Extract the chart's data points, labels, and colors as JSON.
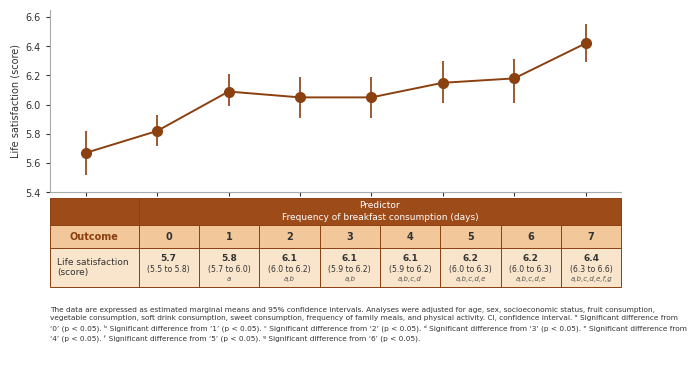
{
  "x": [
    0,
    1,
    2,
    3,
    4,
    5,
    6,
    7
  ],
  "y": [
    5.67,
    5.82,
    6.09,
    6.05,
    6.05,
    6.15,
    6.18,
    6.42
  ],
  "ci_lower": [
    5.52,
    5.72,
    5.99,
    5.91,
    5.91,
    6.01,
    6.01,
    6.29
  ],
  "ci_upper": [
    5.82,
    5.93,
    6.21,
    6.19,
    6.19,
    6.3,
    6.31,
    6.55
  ],
  "line_color": "#8B4010",
  "ylim": [
    5.4,
    6.65
  ],
  "yticks": [
    5.4,
    5.6,
    5.8,
    6.0,
    6.2,
    6.4,
    6.6
  ],
  "xlabel": "Frequency of breakfast consumption (days)",
  "ylabel": "Life satisfaction (score)",
  "table_header_color": "#9E4B1A",
  "table_sub_header_color": "#C17B4E",
  "table_row1_color": "#F2C89B",
  "table_row2_color": "#F9E4CC",
  "table_border_color": "#8B4010",
  "col0_values": [
    "Life satisfaction\n(score)"
  ],
  "col_main": [
    "5.7\n(5.5 to 5.8)\n",
    "5.8\n(5.7 to 6.0)\na",
    "6.1\n(6.0 to 6.2)\na,b",
    "6.1\n(5.9 to 6.2)\na,b",
    "6.1\n(5.9 to 6.2)\na,b,c,d",
    "6.2\n(6.0 to 6.3)\na,b,c,d,e",
    "6.2\n(6.0 to 6.3)\na,b,c,d,e",
    "6.4\n(6.3 to 6.6)\na,b,c,d,e,f,g"
  ],
  "predictor_text": "Predictor\nFrequency of breakfast consumption (days)",
  "outcome_text": "Outcome",
  "col_headers": [
    "0",
    "1",
    "2",
    "3",
    "4",
    "5",
    "6",
    "7"
  ],
  "footnote_line1": "The data are expressed as estimated marginal means and 95% confidence intervals. Analyses were adjusted for age, sex, socioeconomic status, fruit consumption,",
  "footnote_line2": "vegetable consumption, soft drink consumption, sweet consumption, frequency of family meals, and physical activity. CI, confidence interval. ᵃ Significant difference from",
  "footnote_line3": "‘0’ (p < 0.05). ᵇ Significant difference from ‘1’ (p < 0.05). ᶜ Significant difference from ‘2’ (p < 0.05). ᵈ Significant difference from ‘3’ (p < 0.05). ᵉ Significant difference from",
  "footnote_line4": "‘4’ (p < 0.05). ᶠ Significant difference from ‘5’ (p < 0.05). ᵍ Significant difference from ‘6’ (p < 0.05)."
}
